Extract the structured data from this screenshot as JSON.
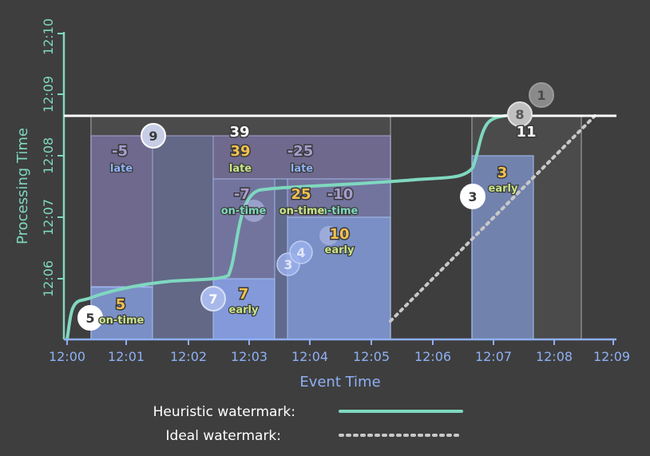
{
  "axes": {
    "x_title": "Event Time",
    "y_title": "Processing Time",
    "x_ticks": [
      "12:00",
      "12:01",
      "12:02",
      "12:03",
      "12:04",
      "12:05",
      "12:06",
      "12:07",
      "12:08",
      "12:09"
    ],
    "y_ticks": [
      "12:06",
      "12:07",
      "12:08",
      "12:09",
      "12:10"
    ]
  },
  "legend": {
    "heuristic": "Heuristic watermark:",
    "ideal": "Ideal watermark:"
  },
  "colors": {
    "background": "#3e3e3e",
    "heuristic": "#7fd8bf",
    "ideal": "#c8c8c8",
    "axis_x": "#8fb0f5",
    "value_late": "#a89ccf",
    "value_ontime": "#f2c04e",
    "tag_ontime": "#7fd8bf",
    "tag_late": "#8fb0f5",
    "tag_early": "#c8e48a"
  },
  "chart_data": {
    "type": "diagram",
    "pane_totals": [
      "39",
      "11"
    ],
    "bubbles": [
      "9",
      "5",
      "7",
      "3",
      "4",
      "3",
      "8",
      "1"
    ],
    "pane_labels": [
      {
        "value": "-5",
        "tag": "late"
      },
      {
        "value": "39",
        "tag": "late"
      },
      {
        "value": "-25",
        "tag": "late"
      },
      {
        "value": "-7",
        "tag": "on-time"
      },
      {
        "value": "25",
        "tag": "on-time"
      },
      {
        "value": "-10",
        "tag": "on-time"
      },
      {
        "value": "10",
        "tag": "early"
      },
      {
        "value": "5",
        "tag": "on-time"
      },
      {
        "value": "7",
        "tag": "early"
      },
      {
        "value": "3",
        "tag": "early"
      }
    ]
  }
}
